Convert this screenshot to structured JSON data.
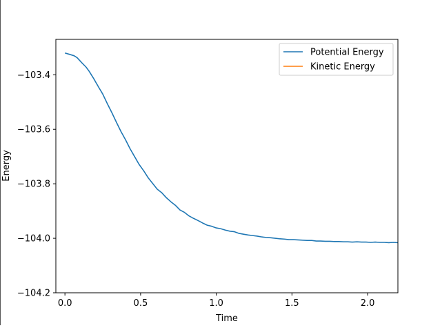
{
  "chart_data": {
    "type": "line",
    "title": "",
    "xlabel": "Time",
    "ylabel": "Energy",
    "xlim": [
      -0.06,
      2.2
    ],
    "ylim": [
      -104.2,
      -103.27
    ],
    "x_ticks": [
      0.0,
      0.5,
      1.0,
      1.5,
      2.0
    ],
    "x_tick_labels": [
      "0.0",
      "0.5",
      "1.0",
      "1.5",
      "2.0"
    ],
    "y_ticks": [
      -103.4,
      -103.6,
      -103.8,
      -104.0,
      -104.2
    ],
    "y_tick_labels": [
      "−103.4",
      "−103.6",
      "−103.8",
      "−104.0",
      "−104.2"
    ],
    "grid": false,
    "legend_position": "top-right",
    "series": [
      {
        "name": "Potential Energy",
        "color": "#1f77b4",
        "x": [
          0.0,
          0.03,
          0.06,
          0.08,
          0.11,
          0.14,
          0.16,
          0.19,
          0.22,
          0.25,
          0.28,
          0.31,
          0.34,
          0.37,
          0.4,
          0.43,
          0.46,
          0.49,
          0.52,
          0.55,
          0.58,
          0.61,
          0.64,
          0.67,
          0.7,
          0.73,
          0.76,
          0.79,
          0.82,
          0.85,
          0.88,
          0.91,
          0.94,
          0.97,
          1.0,
          1.03,
          1.06,
          1.09,
          1.12,
          1.15,
          1.18,
          1.21,
          1.24,
          1.27,
          1.3,
          1.33,
          1.36,
          1.39,
          1.42,
          1.45,
          1.48,
          1.51,
          1.54,
          1.57,
          1.6,
          1.63,
          1.66,
          1.69,
          1.72,
          1.75,
          1.78,
          1.81,
          1.84,
          1.87,
          1.9,
          1.93,
          1.96,
          1.99,
          2.02,
          2.05,
          2.08,
          2.11,
          2.14,
          2.17,
          2.2
        ],
        "y": [
          -103.32,
          -103.325,
          -103.33,
          -103.337,
          -103.355,
          -103.372,
          -103.387,
          -103.414,
          -103.443,
          -103.471,
          -103.506,
          -103.539,
          -103.574,
          -103.608,
          -103.638,
          -103.671,
          -103.7,
          -103.729,
          -103.752,
          -103.778,
          -103.799,
          -103.82,
          -103.833,
          -103.851,
          -103.866,
          -103.879,
          -103.896,
          -103.905,
          -103.918,
          -103.927,
          -103.935,
          -103.944,
          -103.952,
          -103.956,
          -103.962,
          -103.965,
          -103.97,
          -103.974,
          -103.976,
          -103.982,
          -103.985,
          -103.988,
          -103.99,
          -103.992,
          -103.995,
          -103.997,
          -103.998,
          -104.0,
          -104.002,
          -104.003,
          -104.005,
          -104.005,
          -104.006,
          -104.007,
          -104.008,
          -104.008,
          -104.01,
          -104.01,
          -104.011,
          -104.011,
          -104.012,
          -104.012,
          -104.013,
          -104.013,
          -104.014,
          -104.013,
          -104.014,
          -104.014,
          -104.015,
          -104.014,
          -104.015,
          -104.015,
          -104.016,
          -104.015,
          -104.016
        ]
      },
      {
        "name": "Kinetic Energy",
        "color": "#ff7f0e",
        "x": [],
        "y": []
      }
    ]
  }
}
